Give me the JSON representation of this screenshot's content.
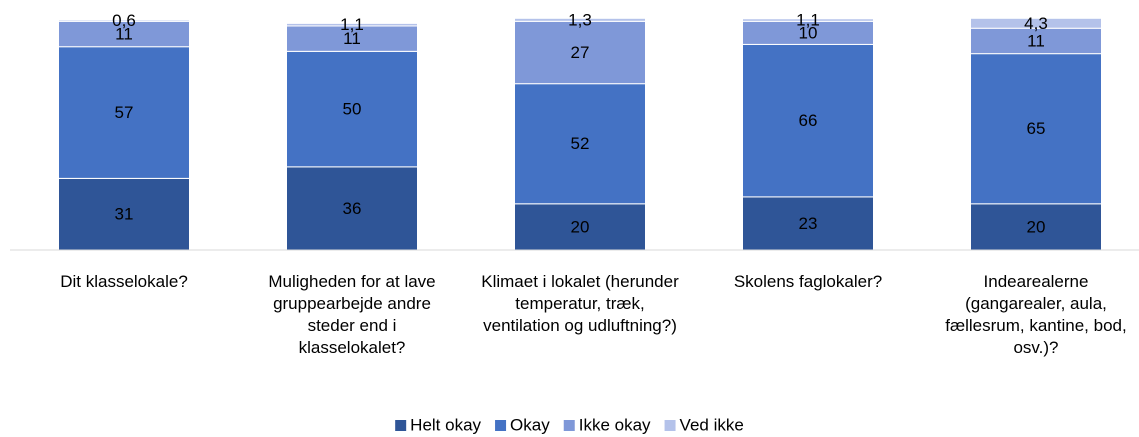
{
  "chart_data": {
    "type": "stacked_bar",
    "categories": [
      "Dit klasselokale?",
      "Muligheden for at lave gruppearbejde andre steder end i klasselokalet?",
      "Klimaet i lokalet (herunder temperatur, træk, ventilation og udluftning?)",
      "Skolens faglokaler?",
      "Indearealerne (gangarealer, aula, fællesrum, kantine, bod, osv.)?"
    ],
    "series": [
      {
        "name": "Helt okay",
        "color": "#2f5597",
        "values": [
          31,
          36,
          20,
          23,
          20
        ]
      },
      {
        "name": "Okay",
        "color": "#4472c4",
        "values": [
          57,
          50,
          52,
          66,
          65
        ]
      },
      {
        "name": "Ikke okay",
        "color": "#7f98d8",
        "values": [
          11,
          11,
          27,
          10,
          11
        ]
      },
      {
        "name": "Ved ikke",
        "color": "#b4c2ea",
        "values": [
          0.6,
          1.1,
          1.3,
          1.1,
          4.3
        ],
        "value_labels": [
          "0,6",
          "1,1",
          "1,3",
          "1,1",
          "4,3"
        ]
      }
    ],
    "ylim": [
      0,
      100
    ],
    "legend": "bottom"
  }
}
